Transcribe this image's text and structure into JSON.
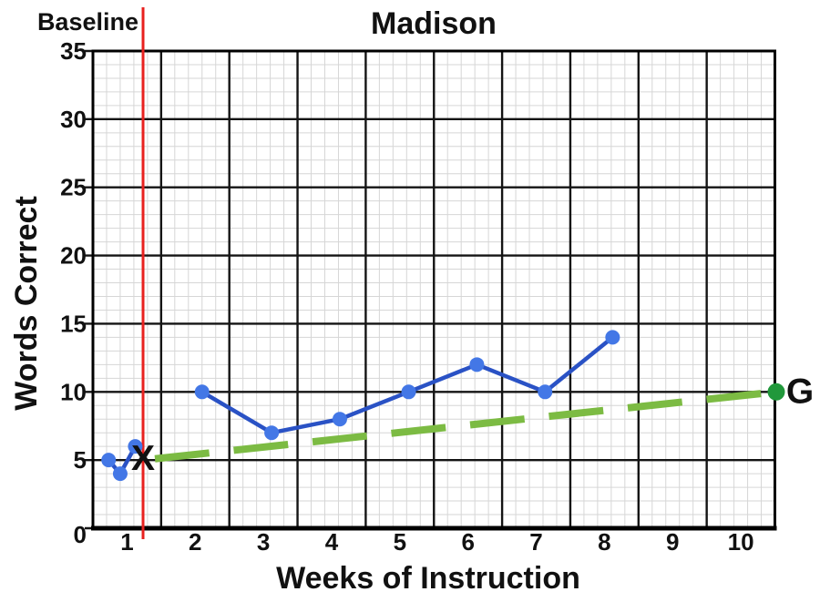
{
  "chart_data": {
    "type": "line",
    "title": "Madison",
    "xlabel": "Weeks of Instruction",
    "ylabel": "Words Correct",
    "baseline_label": "Baseline",
    "xlim": [
      0,
      10
    ],
    "ylim": [
      0,
      35
    ],
    "x_ticks": [
      1,
      2,
      3,
      4,
      5,
      6,
      7,
      8,
      9,
      10
    ],
    "origin_label": "0",
    "y_ticks": [
      5,
      10,
      15,
      20,
      25,
      30,
      35
    ],
    "grid": {
      "visible": true,
      "x_minor_per_week": 5,
      "y_minor_step": 1,
      "light_color": "#d6d6d6",
      "heavy_color": "#141414"
    },
    "baseline_week": 0.735,
    "baseline_line_color": "#e8211f",
    "series": [
      {
        "name": "baseline-scores",
        "color": "#2a52c5",
        "marker_color": "#4377e6",
        "points": [
          [
            0.23,
            5
          ],
          [
            0.4,
            4
          ],
          [
            0.62,
            6
          ]
        ]
      },
      {
        "name": "progress-scores",
        "color": "#2a52c5",
        "marker_color": "#4377e6",
        "points": [
          [
            1.6,
            10
          ],
          [
            2.62,
            7
          ],
          [
            3.62,
            8
          ],
          [
            4.63,
            10
          ],
          [
            5.63,
            12
          ],
          [
            6.63,
            10
          ],
          [
            7.62,
            14
          ]
        ]
      }
    ],
    "goal_line": {
      "from": [
        0.735,
        5
      ],
      "to": [
        10.02,
        10
      ],
      "color": "#7cbb43",
      "dash": [
        60,
        27
      ],
      "start_label": "X",
      "start_label_color": "#1d8f3e",
      "end_label": "G",
      "end_label_color": "#5db33c",
      "end_dot_color": "#21983b"
    },
    "legend": "none",
    "text_color": "#111111"
  }
}
